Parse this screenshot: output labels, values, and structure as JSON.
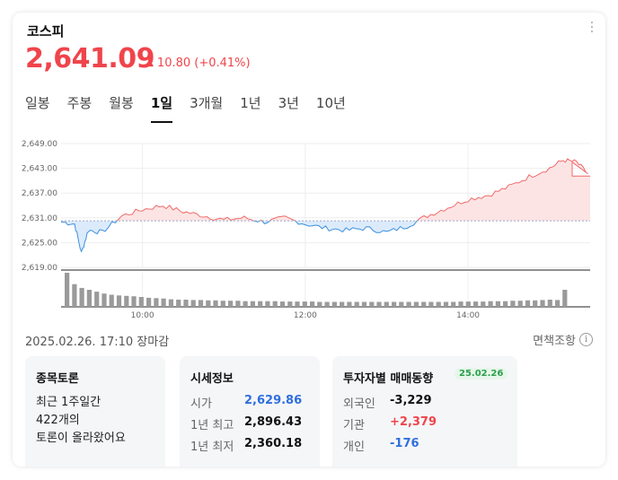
{
  "header": {
    "title": "코스피",
    "price": "2,641.09",
    "change": "10.80 (+0.41%)"
  },
  "tabs": [
    {
      "label": "일봉"
    },
    {
      "label": "주봉"
    },
    {
      "label": "월봉"
    },
    {
      "label": "1일"
    },
    {
      "label": "3개월"
    },
    {
      "label": "1년"
    },
    {
      "label": "3년"
    },
    {
      "label": "10년"
    }
  ],
  "active_tab": "1일",
  "chart_data": {
    "type": "area",
    "y_ticks": [
      "2,649.00",
      "2,643.00",
      "2,637.00",
      "2,631.00",
      "2,625.00",
      "2,619.00"
    ],
    "x_ticks": [
      "10:00",
      "12:00",
      "14:00"
    ],
    "ylim": [
      2619,
      2649
    ],
    "baseline": 2630.29,
    "series": [
      {
        "x": [
          "09:00",
          "09:10",
          "09:15",
          "09:20",
          "09:30",
          "09:45",
          "10:00",
          "10:15",
          "10:30",
          "10:45",
          "11:00",
          "11:15",
          "11:30",
          "11:45",
          "12:00",
          "12:15",
          "12:30",
          "12:45",
          "13:00",
          "13:15",
          "13:30",
          "13:45",
          "14:00",
          "14:15",
          "14:30",
          "14:45",
          "15:00",
          "15:10",
          "15:20",
          "15:30"
        ],
        "values": [
          2630.0,
          2629.5,
          2622.5,
          2628.0,
          2627.5,
          2631.5,
          2633.0,
          2634.0,
          2632.5,
          2631.5,
          2630.5,
          2631.0,
          2630.0,
          2631.0,
          2629.5,
          2628.5,
          2628.0,
          2628.5,
          2627.5,
          2629.0,
          2631.5,
          2633.5,
          2635.5,
          2636.5,
          2638.5,
          2641.0,
          2643.0,
          2645.0,
          2644.5,
          2641.1
        ]
      }
    ],
    "volume": [
      9,
      6,
      5,
      4.5,
      4,
      3.5,
      3.2,
      3,
      2.9,
      2.8,
      2.6,
      2.4,
      2.3,
      2.2,
      2,
      1.9,
      1.9,
      1.8,
      1.8,
      1.7,
      1.7,
      1.6,
      1.6,
      1.6,
      1.5,
      1.5,
      1.5,
      1.5,
      1.5,
      1.4,
      1.4,
      1.4,
      1.4,
      1.4,
      1.3,
      1.3,
      1.3,
      1.3,
      1.3,
      1.3,
      1.3,
      1.3,
      1.3,
      1.3,
      1.3,
      1.3,
      1.3,
      1.3,
      1.3,
      1.3,
      1.3,
      1.3,
      1.3,
      1.4,
      1.4,
      1.4,
      1.4,
      1.5,
      1.5,
      1.5,
      1.6,
      1.6,
      1.7,
      1.7,
      1.8,
      1.9,
      1.8,
      4.5
    ],
    "colors": {
      "up_fill": "#fde4e4",
      "up_line": "#f06a6a",
      "down_fill": "#dcebfb",
      "down_line": "#3b8fe0",
      "volume": "#9a9a9a"
    }
  },
  "status": {
    "timestamp": "2025.02.26. 17:10 장마감",
    "disclaimer": "면책조항"
  },
  "discussion": {
    "title": "종목토론",
    "line1": "최근 1주일간",
    "line2": "422개의",
    "line3": "토론이 올라왔어요"
  },
  "market_info": {
    "title": "시세정보",
    "rows": [
      {
        "label": "시가",
        "value": "2,629.86"
      },
      {
        "label": "1년 최고",
        "value": "2,896.43"
      },
      {
        "label": "1년 최저",
        "value": "2,360.18"
      }
    ]
  },
  "investor": {
    "title": "투자자별 매매동향",
    "date": "25.02.26",
    "rows": [
      {
        "label": "외국인",
        "value": "-3,229"
      },
      {
        "label": "기관",
        "value": "+2,379"
      },
      {
        "label": "개인",
        "value": "-176"
      }
    ]
  }
}
